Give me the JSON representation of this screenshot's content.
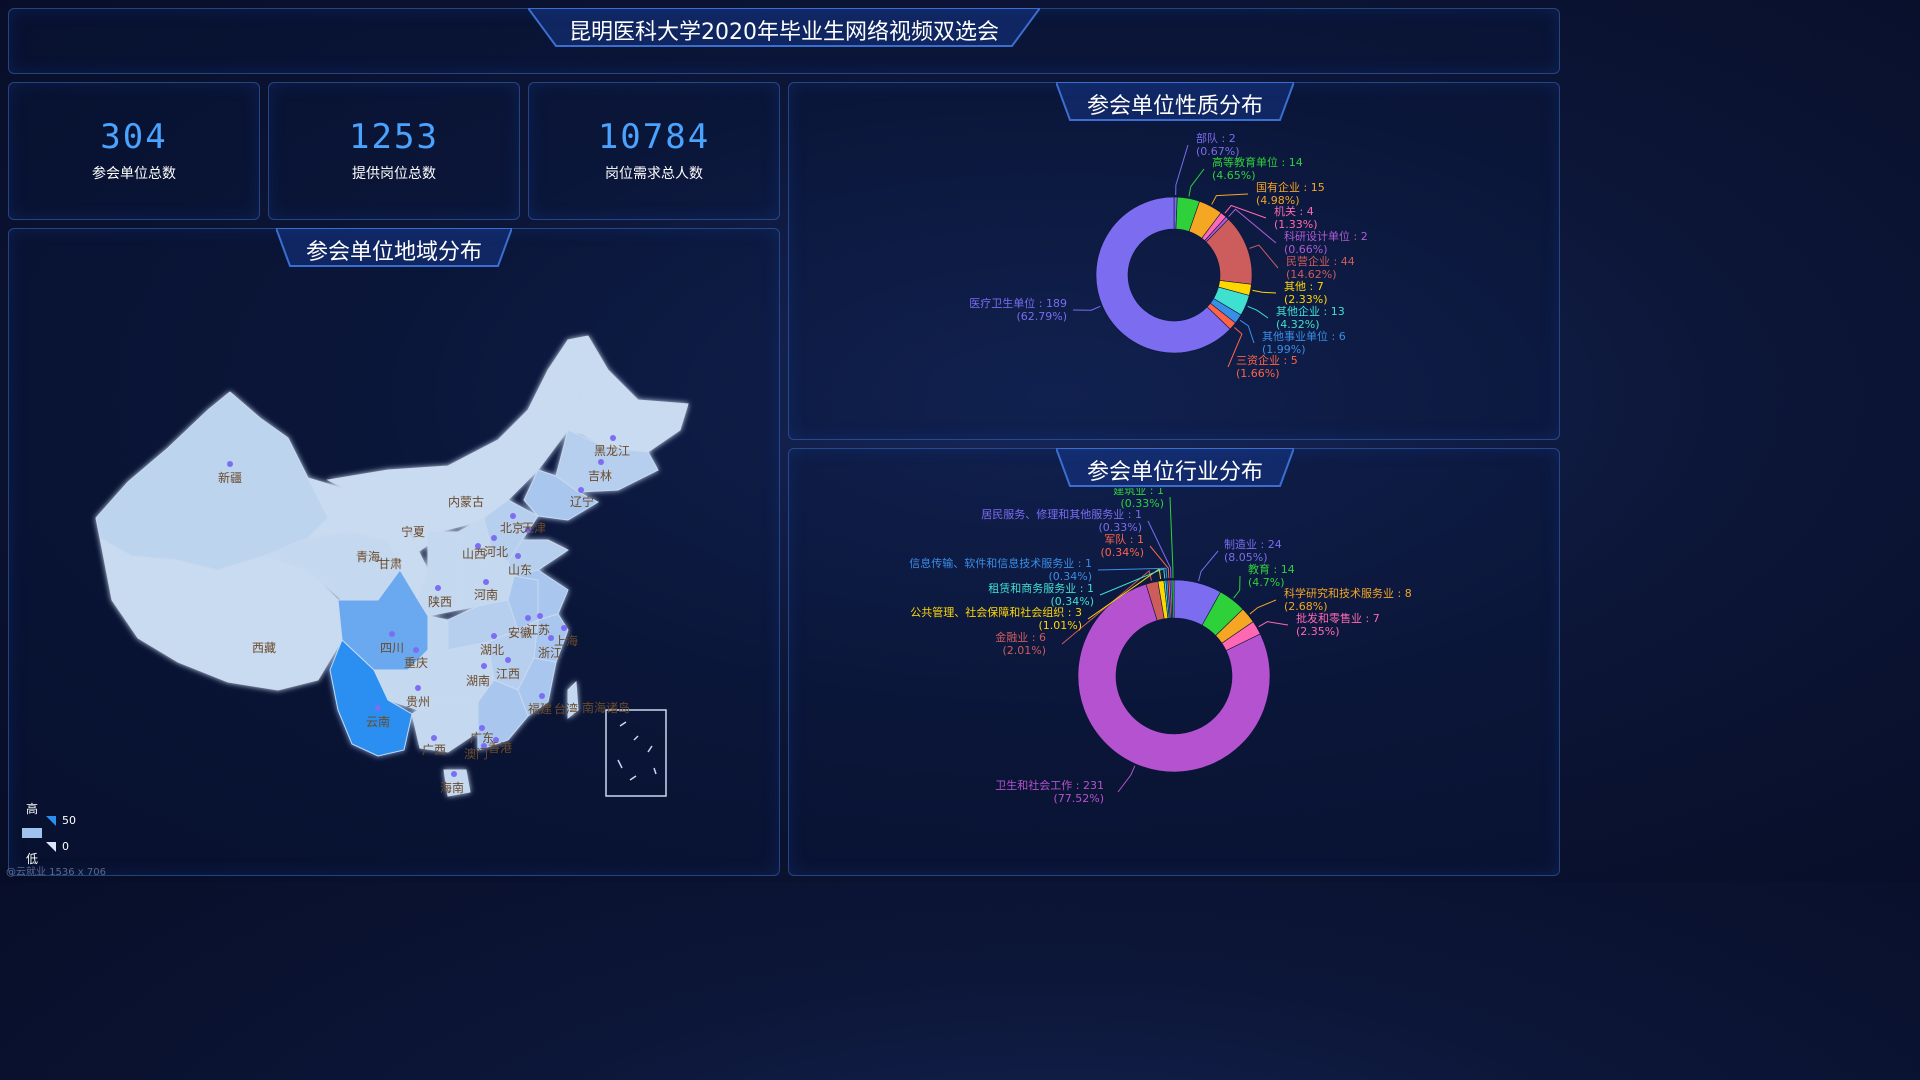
{
  "header": {
    "title": "昆明医科大学2020年毕业生网络视频双选会"
  },
  "stats": [
    {
      "value": "304",
      "label": "参会单位总数"
    },
    {
      "value": "1253",
      "label": "提供岗位总数"
    },
    {
      "value": "10784",
      "label": "岗位需求总人数"
    }
  ],
  "map_panel": {
    "title": "参会单位地域分布",
    "provinces": [
      "新疆",
      "西藏",
      "青海",
      "甘肃",
      "宁夏",
      "内蒙古",
      "黑龙江",
      "吉林",
      "辽宁",
      "北京",
      "天津",
      "河北",
      "山西",
      "山东",
      "陕西",
      "河南",
      "四川",
      "重庆",
      "湖北",
      "安徽",
      "江苏",
      "上海",
      "浙江",
      "湖南",
      "江西",
      "贵州",
      "云南",
      "广西",
      "广东",
      "福建",
      "台湾",
      "香港",
      "澳门",
      "海南",
      "南海诸岛"
    ],
    "legend": {
      "high": "高",
      "low": "低",
      "max": "50",
      "min": "0"
    }
  },
  "nature_panel": {
    "title": "参会单位性质分布",
    "slices": [
      {
        "name": "部队",
        "value": 2,
        "pct": "(0.67%)",
        "color": "#7b6cf0"
      },
      {
        "name": "高等教育单位",
        "value": 14,
        "pct": "(4.65%)",
        "color": "#2fd13b"
      },
      {
        "name": "国有企业",
        "value": 15,
        "pct": "(4.98%)",
        "color": "#f5a623"
      },
      {
        "name": "机关",
        "value": 4,
        "pct": "(1.33%)",
        "color": "#ff69b4"
      },
      {
        "name": "科研设计单位",
        "value": 2,
        "pct": "(0.66%)",
        "color": "#b15bd6"
      },
      {
        "name": "民营企业",
        "value": 44,
        "pct": "(14.62%)",
        "color": "#cd5c5c"
      },
      {
        "name": "其他",
        "value": 7,
        "pct": "(2.33%)",
        "color": "#ffd700"
      },
      {
        "name": "其他企业",
        "value": 13,
        "pct": "(4.32%)",
        "color": "#40e0d0"
      },
      {
        "name": "其他事业单位",
        "value": 6,
        "pct": "(1.99%)",
        "color": "#3a8ee6"
      },
      {
        "name": "三资企业",
        "value": 5,
        "pct": "(1.66%)",
        "color": "#ff6347"
      },
      {
        "name": "医疗卫生单位",
        "value": 189,
        "pct": "(62.79%)",
        "color": "#7b6cf0"
      }
    ]
  },
  "industry_panel": {
    "title": "参会单位行业分布",
    "slices": [
      {
        "name": "制造业",
        "value": 24,
        "pct": "(8.05%)",
        "color": "#7b6cf0"
      },
      {
        "name": "教育",
        "value": 14,
        "pct": "(4.7%)",
        "color": "#2fd13b"
      },
      {
        "name": "科学研究和技术服务业",
        "value": 8,
        "pct": "(2.68%)",
        "color": "#f5a623"
      },
      {
        "name": "批发和零售业",
        "value": 7,
        "pct": "(2.35%)",
        "color": "#ff69b4"
      },
      {
        "name": "卫生和社会工作",
        "value": 231,
        "pct": "(77.52%)",
        "color": "#b552d0"
      },
      {
        "name": "金融业",
        "value": 6,
        "pct": "(2.01%)",
        "color": "#cd5c5c"
      },
      {
        "name": "公共管理、社会保障和社会组织",
        "value": 3,
        "pct": "(1.01%)",
        "color": "#ffd700"
      },
      {
        "name": "租赁和商务服务业",
        "value": 1,
        "pct": "(0.34%)",
        "color": "#40e0d0"
      },
      {
        "name": "信息传输、软件和信息技术服务业",
        "value": 1,
        "pct": "(0.34%)",
        "color": "#3a8ee6"
      },
      {
        "name": "军队",
        "value": 1,
        "pct": "(0.34%)",
        "color": "#ff6347"
      },
      {
        "name": "居民服务、修理和其他服务业",
        "value": 1,
        "pct": "(0.33%)",
        "color": "#7b6cf0"
      },
      {
        "name": "建筑业",
        "value": 1,
        "pct": "(0.33%)",
        "color": "#2fd13b"
      }
    ]
  },
  "footer": {
    "watermark": "@云就业 1536 x 706"
  }
}
